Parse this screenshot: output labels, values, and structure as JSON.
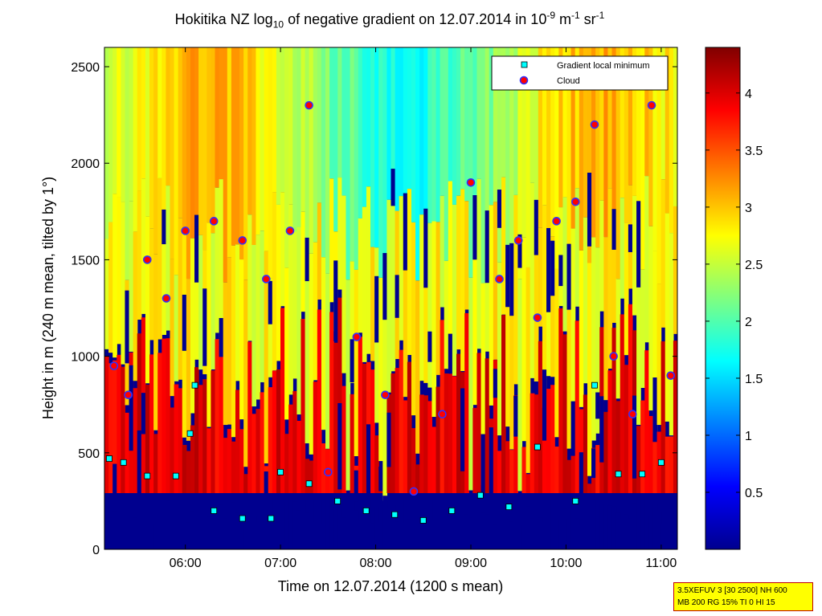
{
  "chart_data": {
    "type": "heatmap",
    "title": {
      "prefix": "Hokitika NZ log",
      "sub": "10",
      "middle": " of negative gradient on 12.07.2014 in 10",
      "sup1": "-9",
      "mid2": " m",
      "sup2": "-1",
      "mid3": " sr",
      "sup3": "-1"
    },
    "xlabel": "Time on 12.07.2014 (1200 s mean)",
    "ylabel": "Height in m (240 m mean, tilted by 1°)",
    "x_ticks": [
      "06:00",
      "07:00",
      "08:00",
      "09:00",
      "10:00",
      "11:00"
    ],
    "x_tick_hours": [
      6,
      7,
      8,
      9,
      10,
      11
    ],
    "xlim_hours": [
      5.15,
      11.17
    ],
    "y_ticks": [
      0,
      500,
      1000,
      1500,
      2000,
      2500
    ],
    "ylim": [
      0,
      2600
    ],
    "colorbar": {
      "ticks": [
        0.5,
        1,
        1.5,
        2,
        2.5,
        3,
        3.5,
        4
      ],
      "range": [
        0,
        4.4
      ],
      "colormap": "jet"
    },
    "legend": {
      "position": "top-right",
      "entries": [
        {
          "name": "Gradient local minimum",
          "marker": "square",
          "color": "#00ffff"
        },
        {
          "name": "Cloud",
          "marker": "circle",
          "color": "#ff0000"
        }
      ]
    },
    "gradient_minimum_series": [
      {
        "time": 5.2,
        "height": 470
      },
      {
        "time": 5.35,
        "height": 450
      },
      {
        "time": 5.6,
        "height": 380
      },
      {
        "time": 5.9,
        "height": 380
      },
      {
        "time": 6.05,
        "height": 600
      },
      {
        "time": 6.1,
        "height": 850
      },
      {
        "time": 6.3,
        "height": 200
      },
      {
        "time": 6.6,
        "height": 160
      },
      {
        "time": 6.9,
        "height": 160
      },
      {
        "time": 7.0,
        "height": 400
      },
      {
        "time": 7.3,
        "height": 340
      },
      {
        "time": 7.6,
        "height": 250
      },
      {
        "time": 7.9,
        "height": 200
      },
      {
        "time": 8.2,
        "height": 180
      },
      {
        "time": 8.5,
        "height": 150
      },
      {
        "time": 8.8,
        "height": 200
      },
      {
        "time": 9.1,
        "height": 280
      },
      {
        "time": 9.4,
        "height": 220
      },
      {
        "time": 9.7,
        "height": 530
      },
      {
        "time": 10.1,
        "height": 250
      },
      {
        "time": 10.3,
        "height": 850
      },
      {
        "time": 10.55,
        "height": 390
      },
      {
        "time": 10.8,
        "height": 390
      },
      {
        "time": 11.0,
        "height": 450
      }
    ],
    "cloud_series": [
      {
        "time": 5.25,
        "height": 950
      },
      {
        "time": 5.4,
        "height": 800
      },
      {
        "time": 5.6,
        "height": 1500
      },
      {
        "time": 5.8,
        "height": 1300
      },
      {
        "time": 6.0,
        "height": 1650
      },
      {
        "time": 6.3,
        "height": 1700
      },
      {
        "time": 6.6,
        "height": 1600
      },
      {
        "time": 6.85,
        "height": 1400
      },
      {
        "time": 7.1,
        "height": 1650
      },
      {
        "time": 7.3,
        "height": 2300
      },
      {
        "time": 7.5,
        "height": 400
      },
      {
        "time": 7.8,
        "height": 1100
      },
      {
        "time": 8.1,
        "height": 800
      },
      {
        "time": 8.4,
        "height": 300
      },
      {
        "time": 8.7,
        "height": 700
      },
      {
        "time": 9.0,
        "height": 1900
      },
      {
        "time": 9.3,
        "height": 1400
      },
      {
        "time": 9.5,
        "height": 1600
      },
      {
        "time": 9.7,
        "height": 1200
      },
      {
        "time": 9.9,
        "height": 1700
      },
      {
        "time": 10.1,
        "height": 1800
      },
      {
        "time": 10.3,
        "height": 2200
      },
      {
        "time": 10.5,
        "height": 1000
      },
      {
        "time": 10.7,
        "height": 700
      },
      {
        "time": 10.9,
        "height": 2300
      },
      {
        "time": 11.1,
        "height": 900
      }
    ]
  },
  "settings_box": {
    "line1": "3.5XEFUV 3 [30 2500] NH 600",
    "line2": "MB 200 RG 15% TI 0 HI 15"
  },
  "colors": {
    "background_fill": "#00008f",
    "box_fill": "#ffff00",
    "box_border": "#c00000"
  }
}
